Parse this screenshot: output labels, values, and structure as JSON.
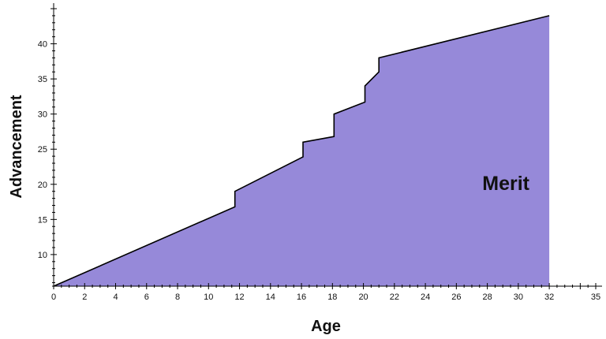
{
  "chart_data": {
    "type": "area",
    "xlabel": "Age",
    "ylabel": "Advancement",
    "xlim": [
      0,
      35
    ],
    "ylim": [
      5.5,
      45
    ],
    "x_ticks": [
      0,
      2,
      4,
      6,
      8,
      10,
      12,
      14,
      16,
      18,
      20,
      22,
      24,
      26,
      28,
      30,
      32,
      35
    ],
    "y_ticks": [
      10,
      15,
      20,
      25,
      30,
      35,
      40
    ],
    "grid": false,
    "fill_color": "#9689D9",
    "line_color": "#000000",
    "annotation": {
      "text": "Merit",
      "x": 29.2,
      "y": 19.2
    },
    "series": [
      {
        "x": [
          0,
          11.7,
          11.7,
          16.1,
          16.1,
          18.1,
          18.1,
          20.1,
          20.1,
          21.0,
          21.0,
          32
        ],
        "y": [
          5.5,
          16.8,
          19.0,
          23.9,
          26.0,
          26.8,
          30.0,
          31.7,
          34.0,
          36.0,
          38.0,
          44.0
        ]
      }
    ]
  }
}
